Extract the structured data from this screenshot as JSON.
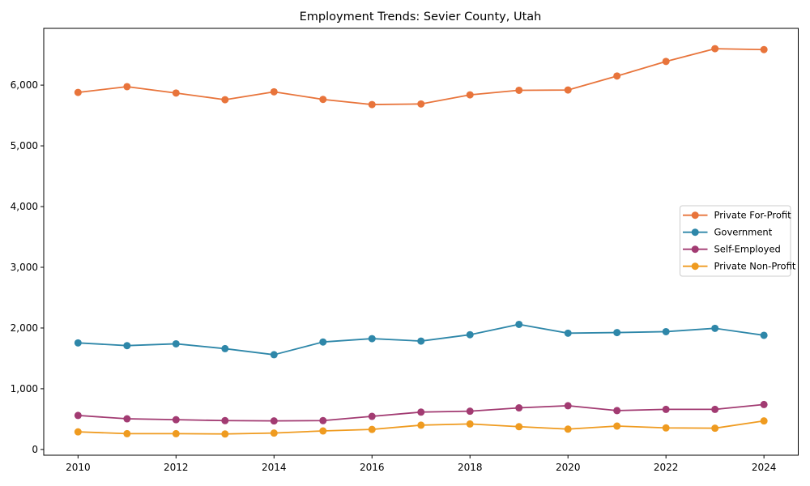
{
  "chart_data": {
    "type": "line",
    "title": "Employment Trends: Sevier County, Utah",
    "x": [
      2010,
      2011,
      2012,
      2013,
      2014,
      2015,
      2016,
      2017,
      2018,
      2019,
      2020,
      2021,
      2022,
      2023,
      2024
    ],
    "series": [
      {
        "name": "Private For-Profit",
        "color": "#e8743b",
        "values": [
          5880,
          5975,
          5870,
          5760,
          5890,
          5765,
          5680,
          5690,
          5840,
          5915,
          5920,
          6150,
          6390,
          6600,
          6585
        ]
      },
      {
        "name": "Government",
        "color": "#2e87a9",
        "values": [
          1755,
          1710,
          1740,
          1660,
          1560,
          1770,
          1825,
          1785,
          1890,
          2060,
          1915,
          1925,
          1940,
          1995,
          1880
        ]
      },
      {
        "name": "Self-Employed",
        "color": "#a23b72",
        "values": [
          560,
          505,
          490,
          475,
          470,
          475,
          545,
          615,
          630,
          685,
          720,
          640,
          660,
          660,
          740
        ]
      },
      {
        "name": "Private Non-Profit",
        "color": "#ef9b20",
        "values": [
          290,
          260,
          260,
          255,
          270,
          305,
          330,
          400,
          420,
          375,
          335,
          385,
          355,
          350,
          470
        ]
      }
    ],
    "xlabel": "",
    "ylabel": "",
    "xlim": [
      2009.3,
      2024.7
    ],
    "ylim": [
      -95,
      6935
    ],
    "xticks": {
      "values": [
        2010,
        2012,
        2014,
        2016,
        2018,
        2020,
        2022,
        2024
      ],
      "labels": [
        "2010",
        "2012",
        "2014",
        "2016",
        "2018",
        "2020",
        "2022",
        "2024"
      ]
    },
    "yticks": {
      "values": [
        0,
        1000,
        2000,
        3000,
        4000,
        5000,
        6000
      ],
      "labels": [
        "0",
        "1,000",
        "2,000",
        "3,000",
        "4,000",
        "5,000",
        "6,000"
      ]
    },
    "grid": false,
    "legend_position": "center-right",
    "marker": "circle",
    "background_color": "#ffffff",
    "spine_color": "#000000"
  }
}
